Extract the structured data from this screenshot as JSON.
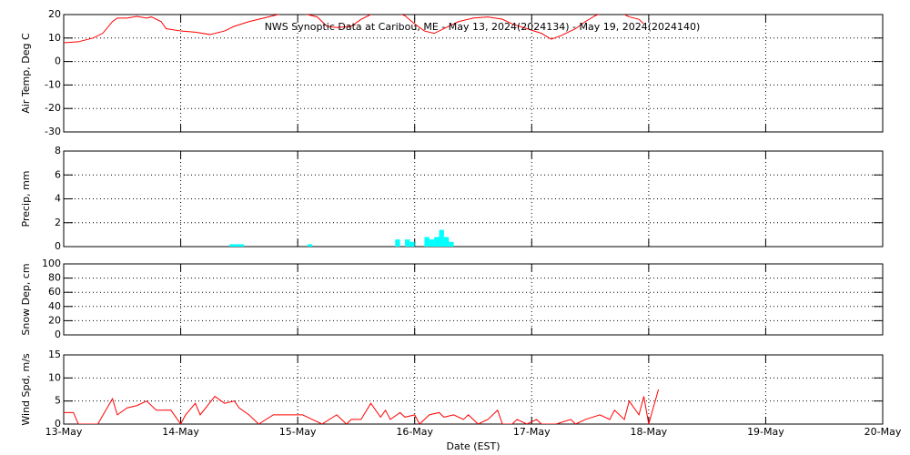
{
  "chart_data": [
    {
      "type": "line",
      "title": "NWS Synoptic Data at Caribou, ME - May 13, 2024(2024134) - May 19, 2024(2024140)",
      "ylabel": "Air Temp, Deg C",
      "xlim": [
        0,
        168
      ],
      "ylim": [
        -30,
        20
      ],
      "yticks": [
        -30,
        -20,
        -10,
        0,
        10,
        20
      ],
      "grid": true,
      "series": [
        {
          "color": "#ff0000",
          "x": [
            0,
            3,
            6,
            8,
            10,
            11,
            13,
            15,
            17,
            18,
            20,
            21,
            24,
            27,
            30,
            33,
            35,
            38,
            41,
            43,
            44,
            47,
            50,
            52,
            54,
            56,
            59,
            61,
            63,
            65,
            68,
            70,
            72,
            74,
            76,
            78,
            81,
            84,
            87,
            90,
            92,
            95,
            98,
            100,
            102,
            105,
            107,
            109,
            111,
            114,
            116,
            118,
            119
          ],
          "values": [
            8,
            8.4,
            10,
            12,
            17,
            18.5,
            18.5,
            19.2,
            18.5,
            19,
            17,
            14,
            13,
            12.5,
            11.5,
            13,
            15,
            17,
            18.5,
            19.5,
            20,
            21,
            20,
            19,
            15,
            14.5,
            15,
            18,
            20,
            22,
            21,
            19.5,
            16,
            13,
            12,
            14,
            17,
            18.5,
            19,
            18,
            16,
            14,
            12,
            9.5,
            11,
            14,
            17,
            19.5,
            21,
            21,
            19,
            18,
            16
          ]
        }
      ]
    },
    {
      "type": "bar",
      "ylabel": "Precip, mm",
      "xlim": [
        0,
        168
      ],
      "ylim": [
        0,
        8
      ],
      "yticks": [
        0,
        2,
        4,
        6,
        8
      ],
      "grid": true,
      "series": [
        {
          "color": "#00ffff",
          "x": [
            34,
            35,
            36,
            50,
            68,
            70,
            71,
            74,
            75,
            76,
            77,
            78,
            79
          ],
          "values": [
            0.2,
            0.2,
            0.2,
            0.2,
            0.6,
            0.6,
            0.4,
            0.8,
            0.6,
            0.8,
            1.4,
            0.8,
            0.4
          ]
        }
      ]
    },
    {
      "type": "line",
      "ylabel": "Snow Dep, cm",
      "xlim": [
        0,
        168
      ],
      "ylim": [
        0,
        100
      ],
      "yticks": [
        0,
        20,
        40,
        60,
        80,
        100
      ],
      "grid": true
    },
    {
      "type": "line",
      "ylabel": "Wind Spd, m/s",
      "xlabel": "Date (EST)",
      "xlim": [
        0,
        168
      ],
      "ylim": [
        0,
        15
      ],
      "yticks": [
        0,
        5,
        10,
        15
      ],
      "grid": true,
      "xticks": [
        {
          "value": 0,
          "label": "13-May"
        },
        {
          "value": 24,
          "label": "14-May"
        },
        {
          "value": 48,
          "label": "15-May"
        },
        {
          "value": 72,
          "label": "16-May"
        },
        {
          "value": 96,
          "label": "17-May"
        },
        {
          "value": 120,
          "label": "18-May"
        },
        {
          "value": 144,
          "label": "19-May"
        },
        {
          "value": 168,
          "label": "20-May"
        }
      ],
      "series": [
        {
          "color": "#ff0000",
          "x": [
            0,
            2,
            3,
            7,
            10,
            11,
            13,
            15,
            17,
            19,
            21,
            22,
            24,
            25,
            27,
            28,
            31,
            33,
            35,
            36,
            38,
            40,
            43,
            47,
            49,
            51,
            53,
            56,
            58,
            59,
            61,
            63,
            65,
            66,
            67,
            69,
            70,
            72,
            73,
            75,
            77,
            78,
            80,
            82,
            83,
            85,
            87,
            89,
            90,
            92,
            93,
            95,
            97,
            98,
            101,
            104,
            105,
            107,
            110,
            112,
            113,
            115,
            116,
            118,
            119,
            120,
            122
          ],
          "values": [
            2.5,
            2.5,
            0,
            0,
            5.5,
            2,
            3.5,
            4,
            5,
            3,
            3,
            3,
            0,
            2,
            4.5,
            2,
            6,
            4.5,
            5,
            3.5,
            2,
            0,
            2,
            2,
            2,
            1,
            0,
            2,
            0,
            1,
            1,
            4.5,
            1.5,
            3,
            1,
            2.5,
            1.5,
            2,
            0,
            2,
            2.5,
            1.5,
            2,
            1,
            2,
            0,
            1,
            3,
            0,
            0,
            1,
            0,
            1,
            0,
            0,
            1,
            0,
            1,
            2,
            1,
            3,
            1,
            5,
            2,
            6,
            0,
            7.5
          ]
        }
      ]
    }
  ]
}
